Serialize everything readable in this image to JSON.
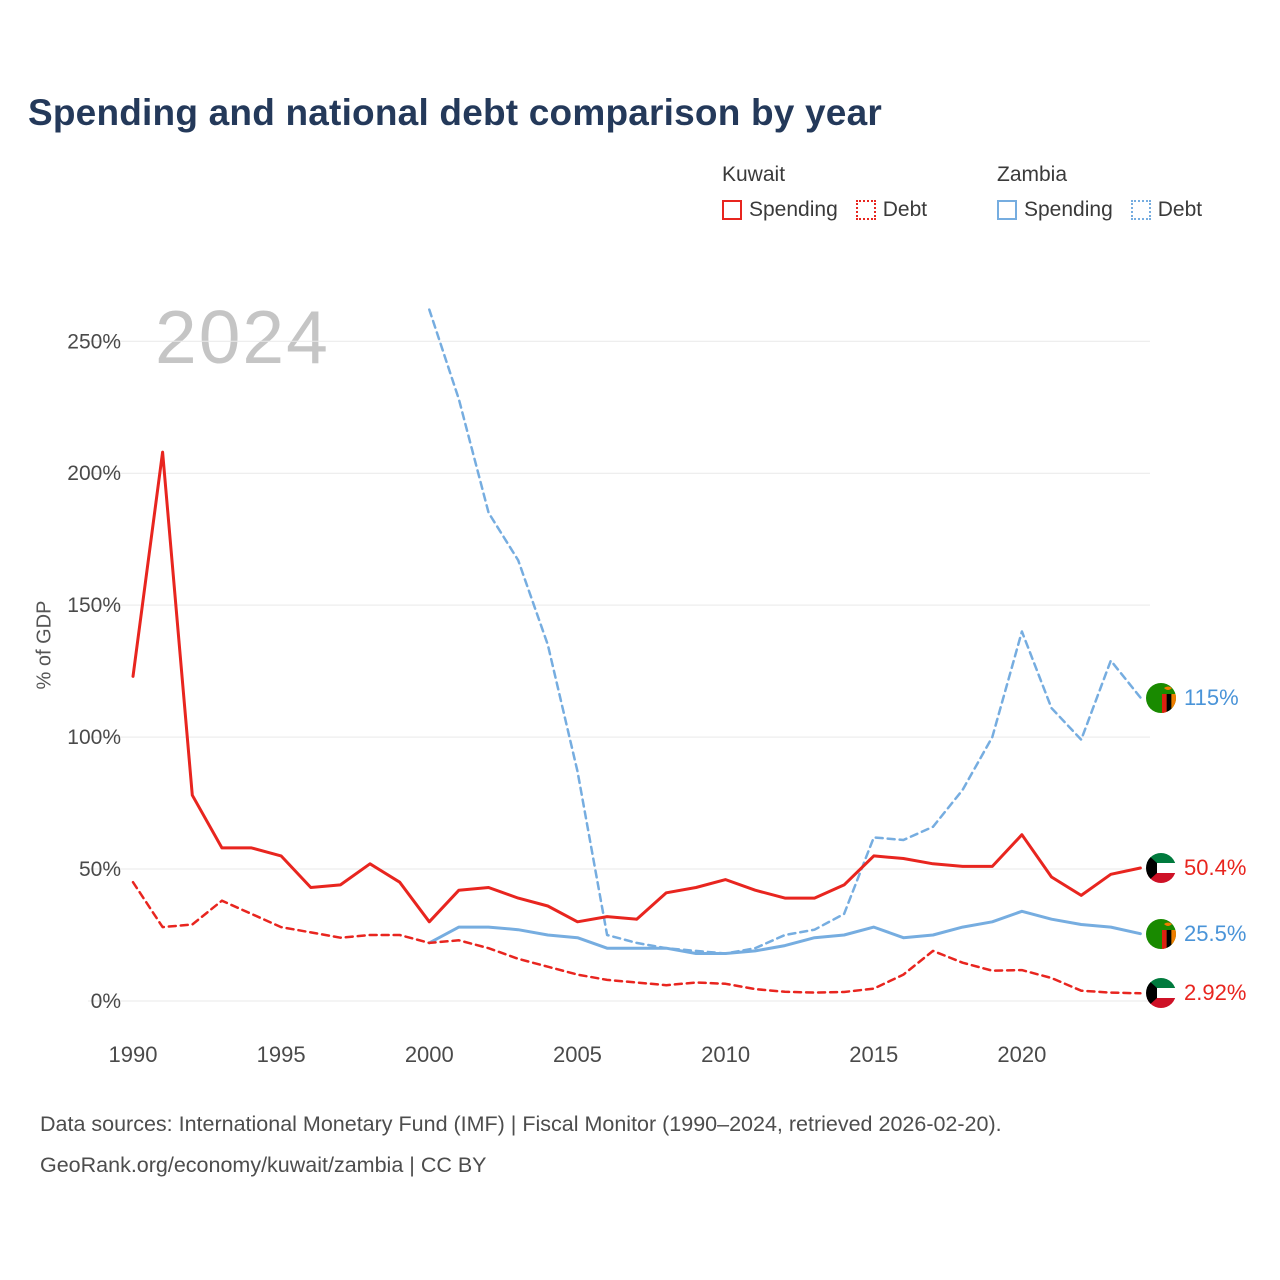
{
  "title": "Spending and national debt comparison by year",
  "watermark": "2024",
  "legend": {
    "groups": [
      {
        "country": "Kuwait",
        "color": "#e8251f",
        "items": [
          {
            "label": "Spending",
            "style": "solid"
          },
          {
            "label": "Debt",
            "style": "dotted"
          }
        ]
      },
      {
        "country": "Zambia",
        "color": "#76ade0",
        "items": [
          {
            "label": "Spending",
            "style": "solid"
          },
          {
            "label": "Debt",
            "style": "dotted"
          }
        ]
      }
    ]
  },
  "axes": {
    "y_label": "% of GDP",
    "y_ticks": [
      "0%",
      "50%",
      "100%",
      "150%",
      "200%",
      "250%"
    ],
    "x_ticks": [
      "1990",
      "1995",
      "2000",
      "2005",
      "2010",
      "2015",
      "2020"
    ]
  },
  "end_labels": [
    {
      "text": "115%",
      "value": 115,
      "color": "#4a94d8",
      "flag": "zambia",
      "series": "Zambia Debt"
    },
    {
      "text": "50.4%",
      "value": 50.4,
      "color": "#e8251f",
      "flag": "kuwait",
      "series": "Kuwait Spending"
    },
    {
      "text": "25.5%",
      "value": 25.5,
      "color": "#4a94d8",
      "flag": "zambia",
      "series": "Zambia Spending"
    },
    {
      "text": "2.92%",
      "value": 2.92,
      "color": "#e8251f",
      "flag": "kuwait",
      "series": "Kuwait Debt"
    }
  ],
  "footer": {
    "line1": "Data sources: International Monetary Fund (IMF) | Fiscal Monitor (1990–2024, retrieved 2026-02-20).",
    "line2": "GeoRank.org/economy/kuwait/zambia | CC BY"
  },
  "chart_data": {
    "type": "line",
    "title": "Spending and national debt comparison by year",
    "xlabel": "Year",
    "ylabel": "% of GDP",
    "xlim": [
      1990,
      2024
    ],
    "ylim": [
      0,
      265
    ],
    "grid": "horizontal",
    "legend_position": "top-right",
    "x": [
      1990,
      1991,
      1992,
      1993,
      1994,
      1995,
      1996,
      1997,
      1998,
      1999,
      2000,
      2001,
      2002,
      2003,
      2004,
      2005,
      2006,
      2007,
      2008,
      2009,
      2010,
      2011,
      2012,
      2013,
      2014,
      2015,
      2016,
      2017,
      2018,
      2019,
      2020,
      2021,
      2022,
      2023,
      2024
    ],
    "series": [
      {
        "name": "Kuwait Spending",
        "color": "#e8251f",
        "dash": "solid",
        "values": [
          123,
          208,
          78,
          58,
          58,
          55,
          43,
          44,
          52,
          45,
          30,
          42,
          43,
          39,
          36,
          30,
          32,
          31,
          41,
          43,
          46,
          42,
          39,
          39,
          44,
          55,
          54,
          52,
          51,
          51,
          63,
          47,
          40,
          48,
          50.4
        ]
      },
      {
        "name": "Kuwait Debt",
        "color": "#e8251f",
        "dash": "dashed",
        "values": [
          45,
          28,
          29,
          38,
          33,
          28,
          26,
          24,
          25,
          25,
          22,
          23,
          20,
          16,
          13,
          10,
          8,
          7,
          6,
          7,
          6.5,
          4.5,
          3.5,
          3.2,
          3.4,
          4.7,
          10,
          19,
          14.5,
          11.5,
          11.7,
          8.7,
          3.9,
          3.2,
          2.92
        ]
      },
      {
        "name": "Zambia Spending",
        "color": "#76ade0",
        "dash": "solid",
        "values": [
          null,
          null,
          null,
          null,
          null,
          null,
          null,
          null,
          null,
          null,
          22,
          28,
          28,
          27,
          25,
          24,
          20,
          20,
          20,
          18,
          18,
          19,
          21,
          24,
          25,
          28,
          24,
          25,
          28,
          30,
          34,
          31,
          29,
          28,
          25.5
        ]
      },
      {
        "name": "Zambia Debt",
        "color": "#76ade0",
        "dash": "dashed",
        "values": [
          null,
          null,
          null,
          null,
          null,
          null,
          null,
          null,
          null,
          null,
          262,
          228,
          185,
          167,
          135,
          87,
          25,
          22,
          20,
          19,
          18,
          20,
          25,
          27,
          33,
          62,
          61,
          66,
          80,
          100,
          140,
          111,
          99,
          129,
          115
        ]
      }
    ]
  }
}
